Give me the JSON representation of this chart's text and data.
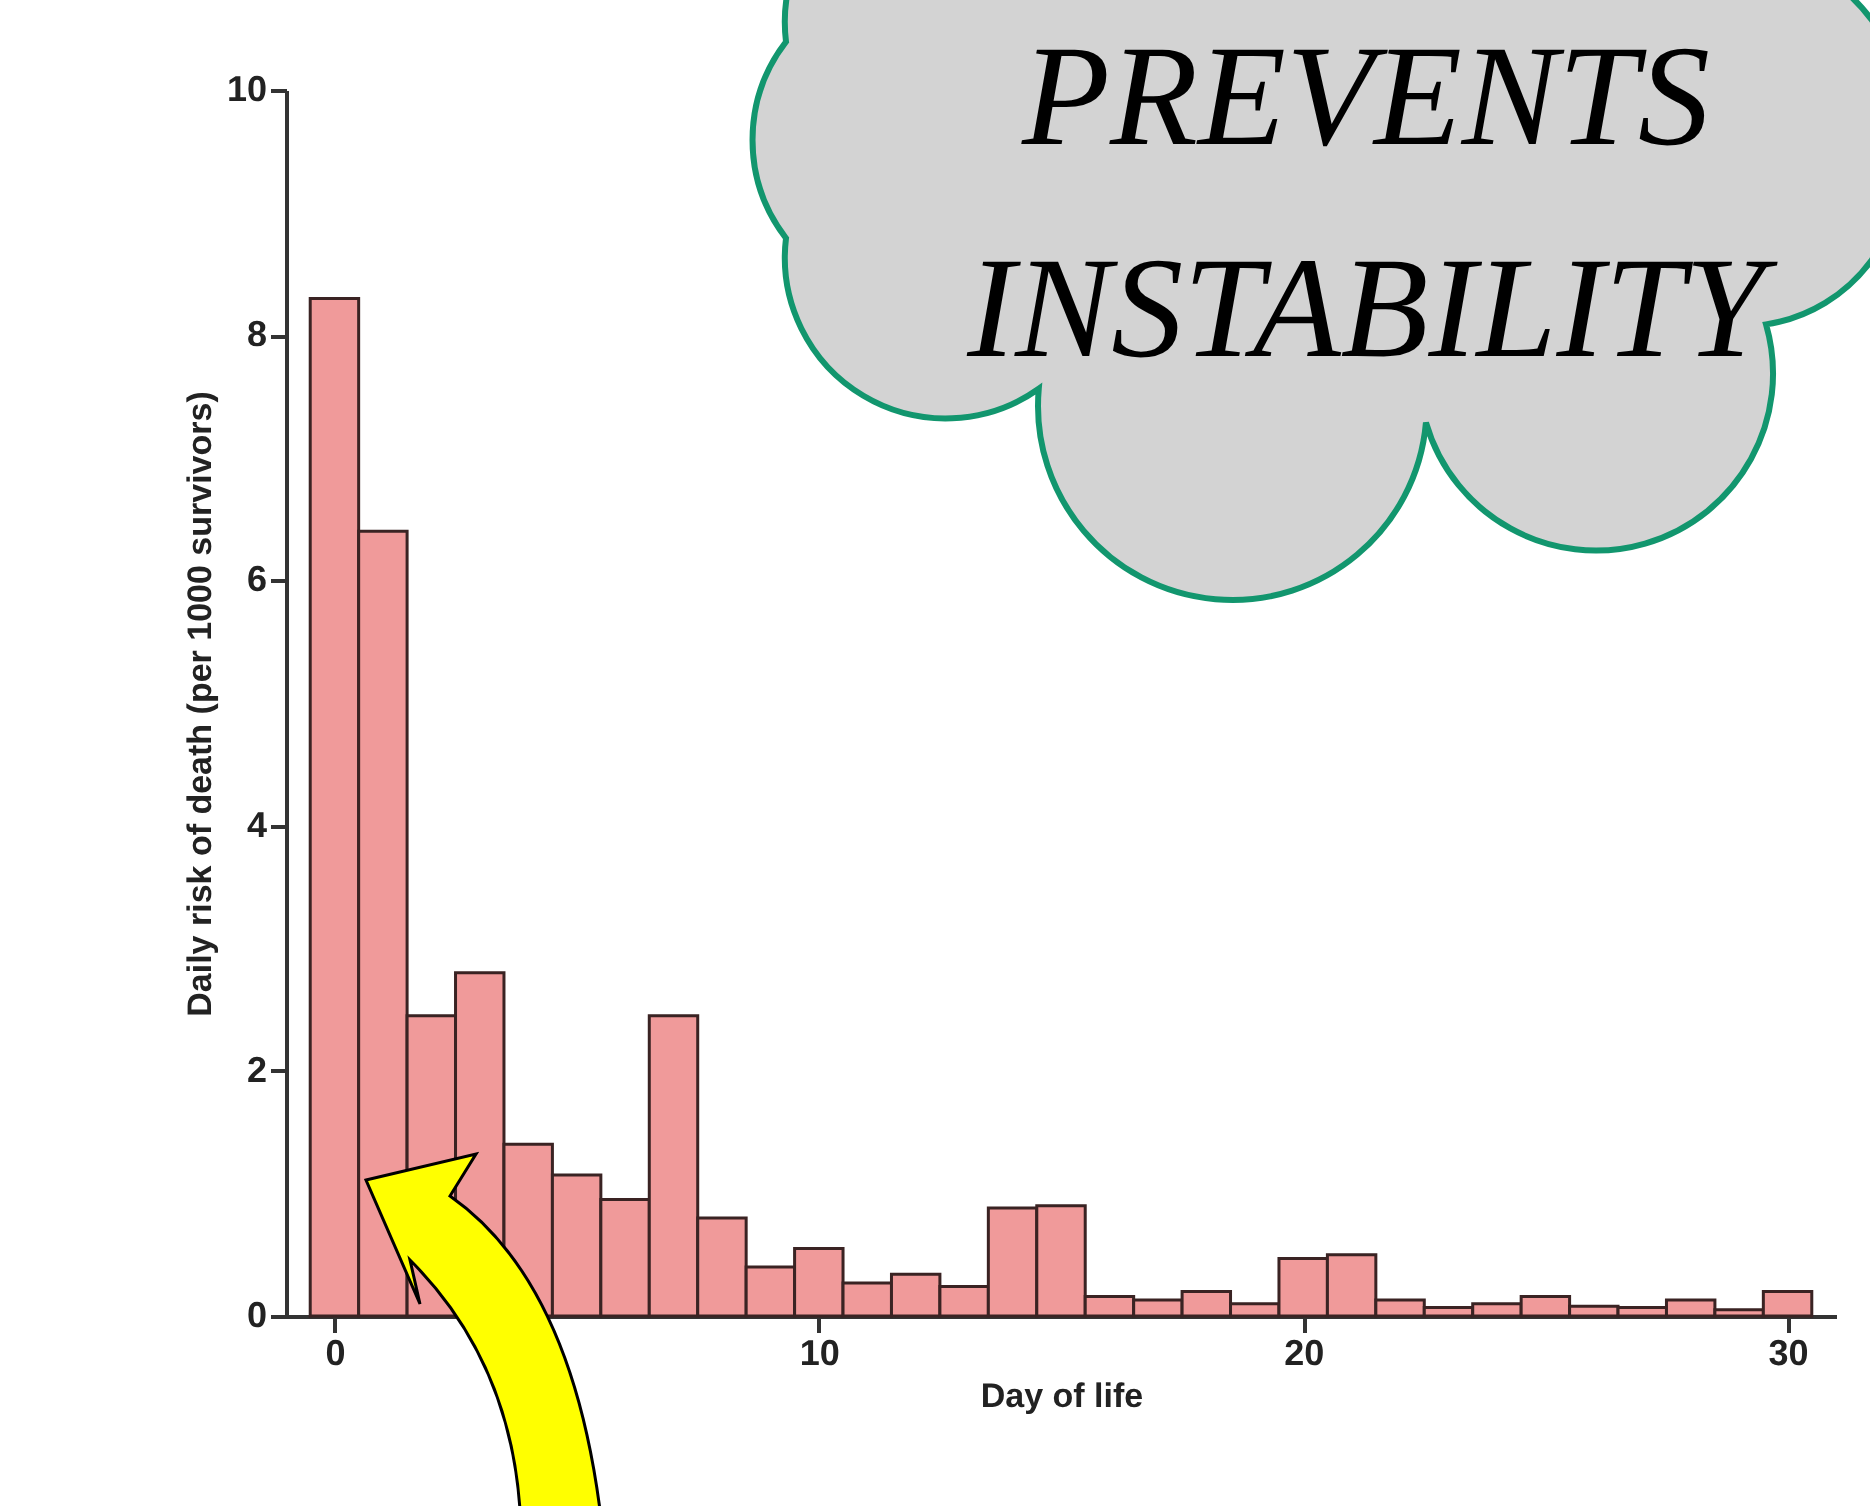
{
  "chart_data": {
    "type": "histogram",
    "xlabel": "Day of life",
    "ylabel": "Daily risk of death (per 1000 survivors)",
    "bins": [
      -0.5,
      0.5,
      1.5,
      2.5,
      3.5,
      4.5,
      5.5,
      6.5,
      7.5,
      8.5,
      9.5,
      10.5,
      11.5,
      12.5,
      13.5,
      14.5,
      15.5,
      16.5,
      17.5,
      18.5,
      19.5,
      20.5,
      21.5,
      22.5,
      23.5,
      24.5,
      25.5,
      26.5,
      27.5,
      28.5,
      29.5,
      30.5
    ],
    "values": [
      8.3,
      6.4,
      2.45,
      2.8,
      1.4,
      1.15,
      0.95,
      2.45,
      0.8,
      0.4,
      0.55,
      0.27,
      0.34,
      0.24,
      0.88,
      0.9,
      0.16,
      0.13,
      0.2,
      0.1,
      0.47,
      0.5,
      0.13,
      0.07,
      0.1,
      0.16,
      0.08,
      0.07,
      0.13,
      0.05,
      0.2
    ],
    "color": "#f09a9a",
    "xlim": [
      -1,
      31
    ],
    "ylim": [
      0,
      10
    ],
    "xticks": [
      0,
      10,
      20,
      30
    ],
    "yticks": [
      0,
      2,
      4,
      6,
      8,
      10
    ],
    "grid": false,
    "annotations": [
      "PREVENTS INSTABILITY"
    ]
  }
}
